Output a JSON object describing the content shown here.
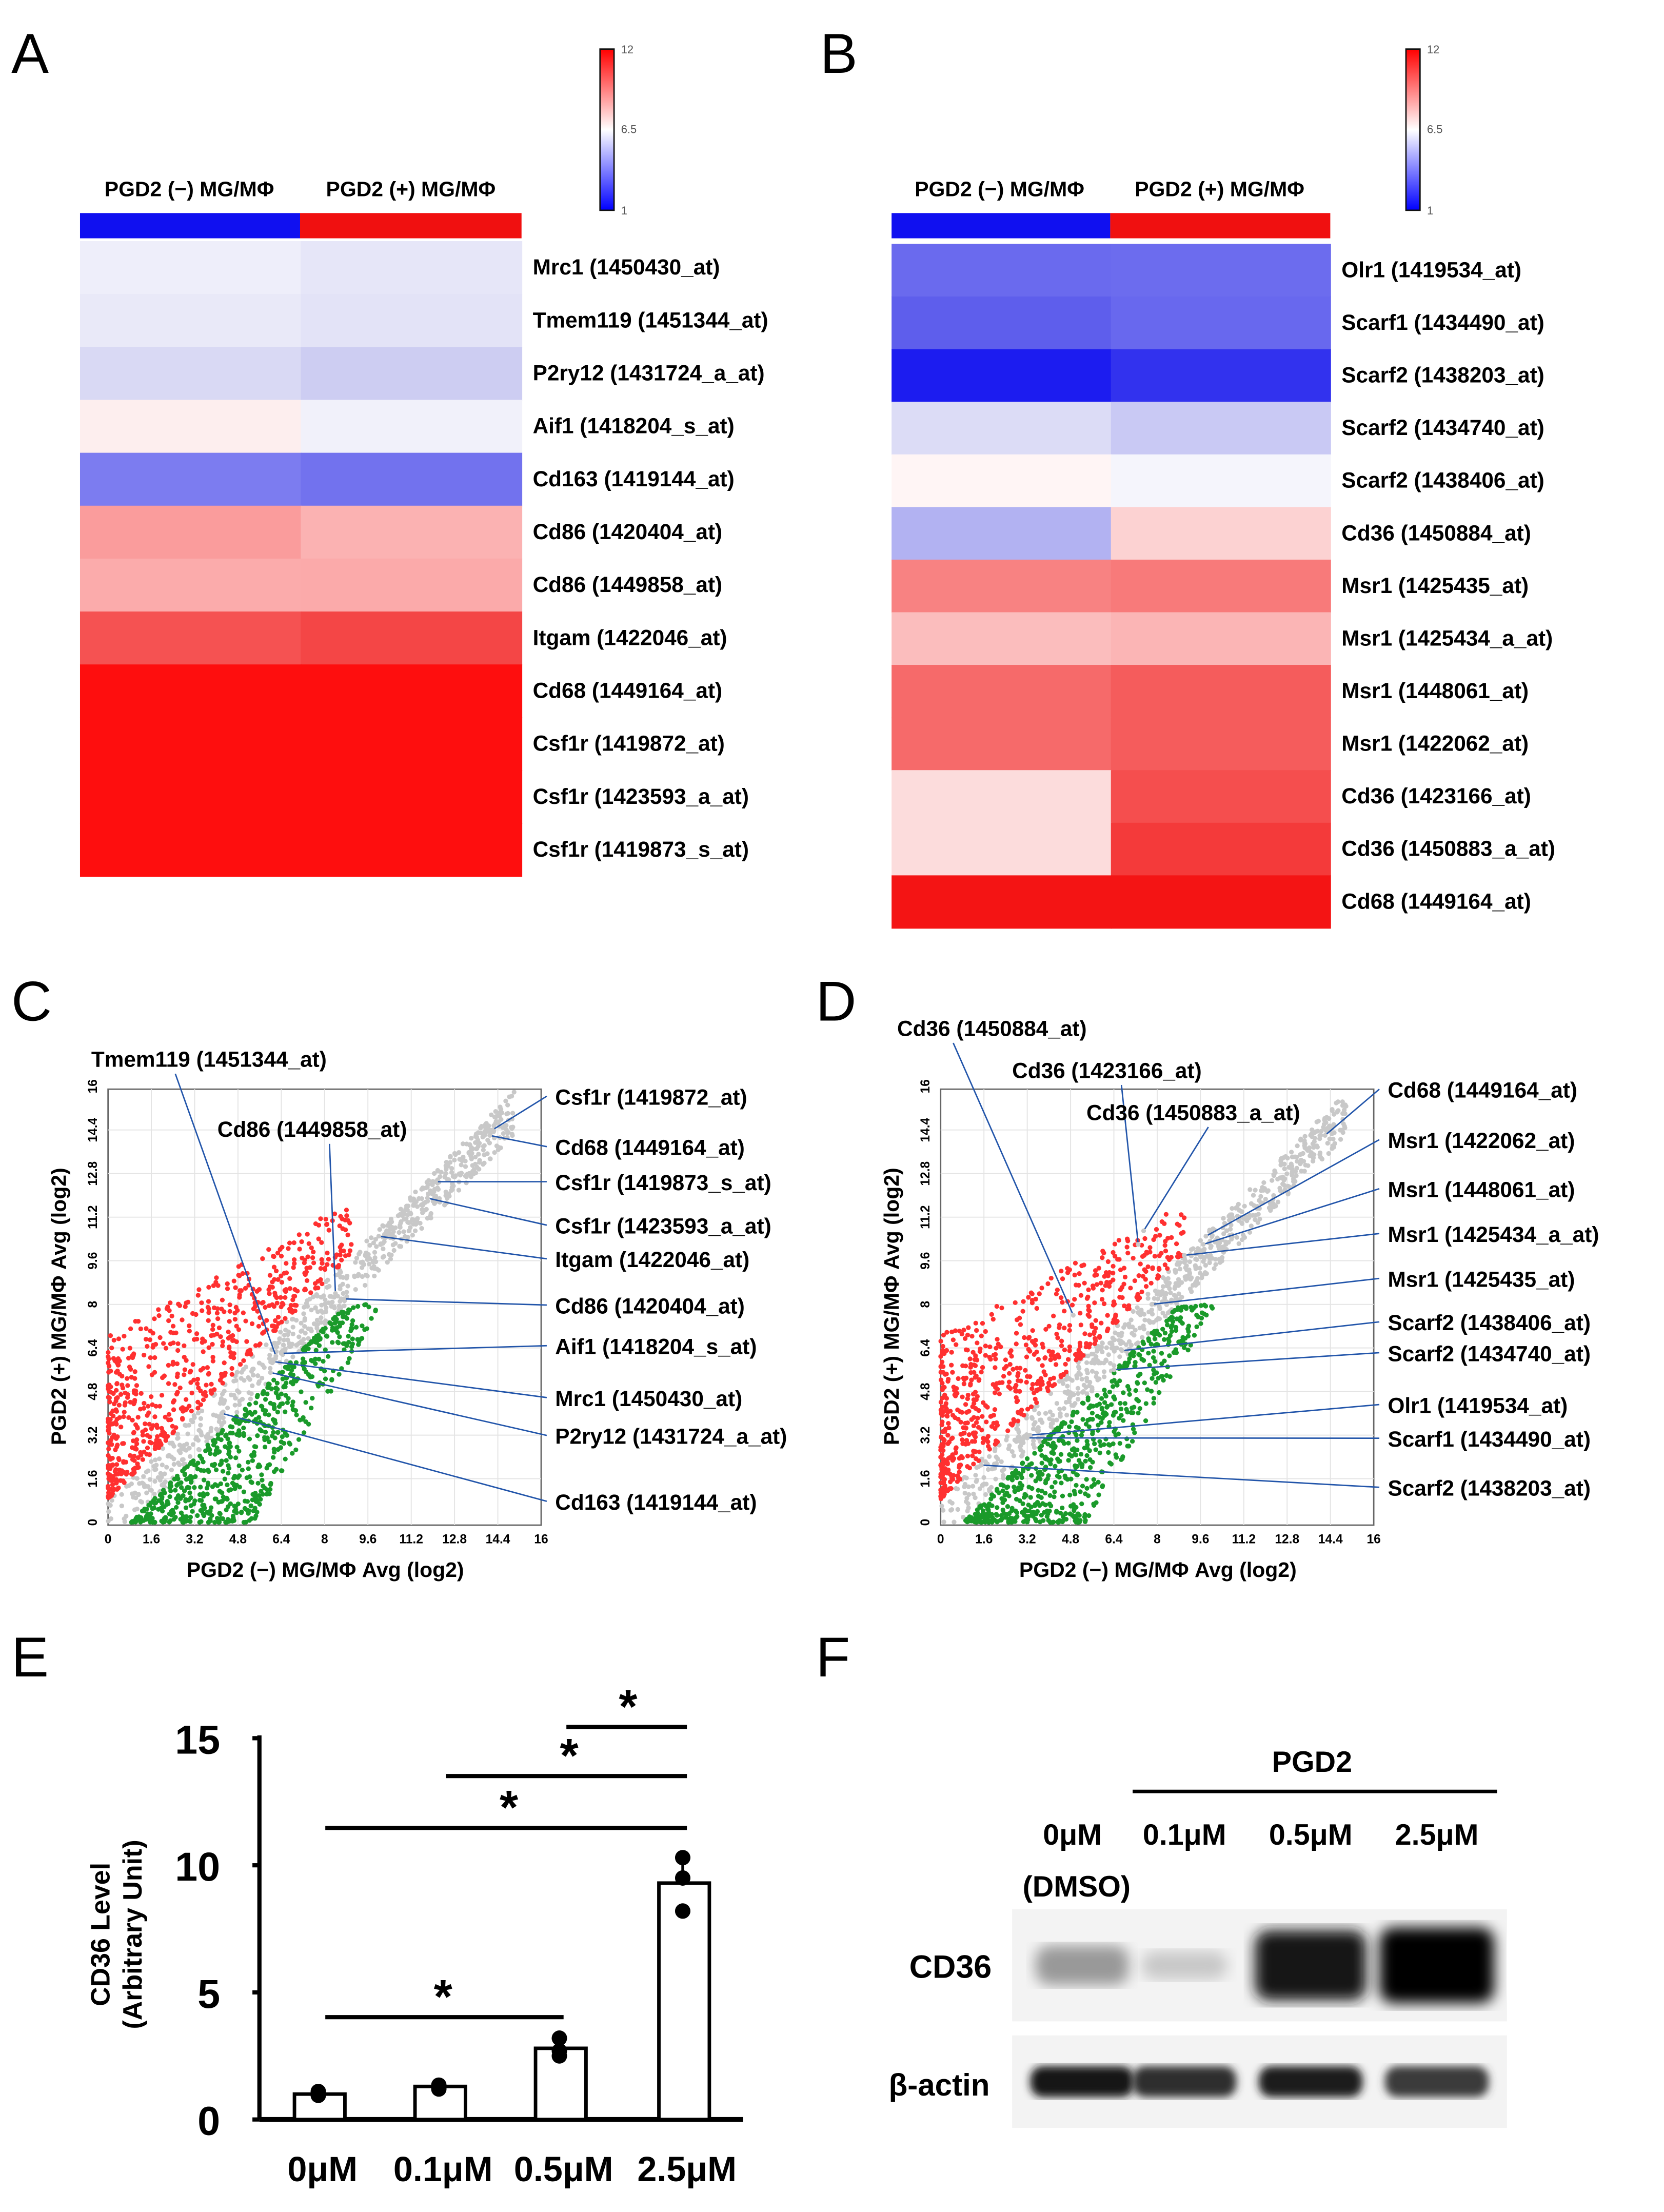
{
  "panels": {
    "a": "A",
    "b": "B",
    "c": "C",
    "d": "D",
    "e": "E",
    "f": "F"
  },
  "colorbar": {
    "max": "12",
    "mid": "6.5",
    "min": "1",
    "colors": [
      "#0000ff",
      "#ffffff",
      "#ff0000"
    ]
  },
  "group_colors": {
    "neg": "#1010f0",
    "pos": "#f01010"
  },
  "chart_data": [
    {
      "type": "heatmap",
      "panel": "A",
      "columns": [
        "PGD2 (−) MG/MΦ",
        "PGD2 (+) MG/MΦ"
      ],
      "rows": [
        {
          "label": "Mrc1 (1450430_at)",
          "colors": [
            "#eeeefa",
            "#e6e6f8"
          ]
        },
        {
          "label": "Tmem119 (1451344_at)",
          "colors": [
            "#e9e9f8",
            "#e3e3f7"
          ]
        },
        {
          "label": "P2ry12 (1431724_a_at)",
          "colors": [
            "#d9d9f4",
            "#cdcdf2"
          ]
        },
        {
          "label": "Aif1 (1418204_s_at)",
          "colors": [
            "#fdeeee",
            "#f1f1fa"
          ]
        },
        {
          "label": "Cd163 (1419144_at)",
          "colors": [
            "#7c7cf0",
            "#7272ee"
          ]
        },
        {
          "label": "Cd86 (1420404_at)",
          "colors": [
            "#fa9c9c",
            "#fbb2b2"
          ]
        },
        {
          "label": "Cd86 (1449858_at)",
          "colors": [
            "#fbabab",
            "#fbaaaa"
          ]
        },
        {
          "label": "Itgam (1422046_at)",
          "colors": [
            "#f55252",
            "#f44646"
          ]
        },
        {
          "label": "Cd68 (1449164_at)",
          "colors": [
            "#fe0e0e",
            "#fe0e0e"
          ]
        },
        {
          "label": "Csf1r (1419872_at)",
          "colors": [
            "#fe0e0e",
            "#fe0e0e"
          ]
        },
        {
          "label": "Csf1r (1423593_a_at)",
          "colors": [
            "#fe0e0e",
            "#fe0e0e"
          ]
        },
        {
          "label": "Csf1r (1419873_s_at)",
          "colors": [
            "#fe0e0e",
            "#fe0e0e"
          ]
        }
      ],
      "scale": {
        "min": 1,
        "mid": 6.5,
        "max": 12
      }
    },
    {
      "type": "heatmap",
      "panel": "B",
      "columns": [
        "PGD2 (−) MG/MΦ",
        "PGD2 (+) MG/MΦ"
      ],
      "rows": [
        {
          "label": "Olr1 (1419534_at)",
          "colors": [
            "#6a6aee",
            "#6c6cee"
          ]
        },
        {
          "label": "Scarf1 (1434490_at)",
          "colors": [
            "#5e5eec",
            "#6868ee"
          ]
        },
        {
          "label": "Scarf2 (1438203_at)",
          "colors": [
            "#1c1cf0",
            "#3232ee"
          ]
        },
        {
          "label": "Scarf2 (1434740_at)",
          "colors": [
            "#dcdcf6",
            "#c9c9f4"
          ]
        },
        {
          "label": "Scarf2 (1438406_at)",
          "colors": [
            "#fff5f5",
            "#f5f5fc"
          ]
        },
        {
          "label": "Cd36 (1450884_at)",
          "colors": [
            "#b2b2f2",
            "#fcd2d2"
          ]
        },
        {
          "label": "Msr1 (1425435_at)",
          "colors": [
            "#f88282",
            "#f87a7a"
          ]
        },
        {
          "label": "Msr1 (1425434_a_at)",
          "colors": [
            "#fbbdbd",
            "#fbb5b5"
          ]
        },
        {
          "label": "Msr1 (1448061_at)",
          "colors": [
            "#f66a6a",
            "#f55c5c"
          ]
        },
        {
          "label": "Msr1 (1422062_at)",
          "colors": [
            "#f66a6a",
            "#f55c5c"
          ]
        },
        {
          "label": "Cd36 (1423166_at)",
          "colors": [
            "#fcdcdc",
            "#f54e4e"
          ]
        },
        {
          "label": "Cd36 (1450883_a_at)",
          "colors": [
            "#fcdcdc",
            "#f43a3a"
          ]
        },
        {
          "label": "Cd68 (1449164_at)",
          "colors": [
            "#f41414",
            "#f41414"
          ]
        }
      ],
      "scale": {
        "min": 1,
        "mid": 6.5,
        "max": 12
      }
    },
    {
      "type": "scatter",
      "panel": "C",
      "xlabel": "PGD2 (−) MG/MΦ Avg (log2)",
      "ylabel": "PGD2 (+) MG/MΦ Avg (log2)",
      "xlim": [
        0,
        16
      ],
      "ylim": [
        0,
        16
      ],
      "ticks": [
        "0",
        "1.6",
        "3.2",
        "4.8",
        "6.4",
        "8",
        "9.6",
        "11.2",
        "12.8",
        "14.4",
        "16"
      ],
      "grid": true,
      "series_colors": {
        "up": "#ff3030",
        "unchanged": "#c8c8c8",
        "down": "#1a9a2a"
      },
      "annotations": [
        {
          "label": "Tmem119 (1451344_at)",
          "x": 6.2,
          "y": 6.1
        },
        {
          "label": "Cd86 (1449858_at)",
          "x": 8.4,
          "y": 8.4
        },
        {
          "label": "Csf1r (1419872_at)",
          "x": 14.2,
          "y": 14.4
        },
        {
          "label": "Cd68 (1449164_at)",
          "x": 14.1,
          "y": 14.2
        },
        {
          "label": "Csf1r (1419873_s_at)",
          "x": 12.1,
          "y": 12.5
        },
        {
          "label": "Csf1r (1423593_a_at)",
          "x": 11.8,
          "y": 11.9
        },
        {
          "label": "Itgam (1422046_at)",
          "x": 10.0,
          "y": 10.5
        },
        {
          "label": "Cd86 (1420404_at)",
          "x": 8.7,
          "y": 8.2
        },
        {
          "label": "Aif1 (1418204_s_at)",
          "x": 6.4,
          "y": 6.2
        },
        {
          "label": "Mrc1 (1450430_at)",
          "x": 6.1,
          "y": 5.9
        },
        {
          "label": "P2ry12 (1431724_a_at)",
          "x": 6.0,
          "y": 5.5
        },
        {
          "label": "Cd163 (1419144_at)",
          "x": 4.2,
          "y": 4.0
        }
      ]
    },
    {
      "type": "scatter",
      "panel": "D",
      "xlabel": "PGD2 (−) MG/MΦ Avg (log2)",
      "ylabel": "PGD2 (+) MG/MΦ Avg (log2)",
      "xlim": [
        0,
        16
      ],
      "ylim": [
        0,
        16
      ],
      "ticks": [
        "0",
        "1.6",
        "3.2",
        "4.8",
        "6.4",
        "8",
        "9.6",
        "11.2",
        "12.8",
        "14.4",
        "16"
      ],
      "grid": true,
      "series_colors": {
        "up": "#ff3030",
        "unchanged": "#c8c8c8",
        "down": "#1a9a2a"
      },
      "annotations": [
        {
          "label": "Cd36 (1450884_at)",
          "x": 4.9,
          "y": 7.6
        },
        {
          "label": "Cd36 (1423166_at)",
          "x": 7.3,
          "y": 10.2
        },
        {
          "label": "Cd36 (1450883_a_at)",
          "x": 7.5,
          "y": 10.7
        },
        {
          "label": "Cd68 (1449164_at)",
          "x": 14.2,
          "y": 14.2
        },
        {
          "label": "Msr1 (1422062_at)",
          "x": 9.8,
          "y": 10.5
        },
        {
          "label": "Msr1 (1448061_at)",
          "x": 9.7,
          "y": 10.2
        },
        {
          "label": "Msr1 (1425434_a_at)",
          "x": 9.0,
          "y": 9.8
        },
        {
          "label": "Msr1 (1425435_at)",
          "x": 7.8,
          "y": 8.0
        },
        {
          "label": "Scarf2 (1438406_at)",
          "x": 6.7,
          "y": 6.3
        },
        {
          "label": "Scarf2 (1434740_at)",
          "x": 6.4,
          "y": 5.6
        },
        {
          "label": "Olr1 (1419534_at)",
          "x": 3.3,
          "y": 3.2
        },
        {
          "label": "Scarf1 (1434490_at)",
          "x": 3.2,
          "y": 3.1
        },
        {
          "label": "Scarf2 (1438203_at)",
          "x": 1.5,
          "y": 2.1
        }
      ]
    },
    {
      "type": "bar",
      "panel": "E",
      "categories": [
        "0μM",
        "0.1μM",
        "0.5μM",
        "2.5μM"
      ],
      "values": [
        1.0,
        1.3,
        2.8,
        9.3
      ],
      "points": [
        [
          1.1,
          1.0,
          0.95
        ],
        [
          1.35,
          1.25,
          1.2
        ],
        [
          3.2,
          2.7,
          2.5
        ],
        [
          10.3,
          9.5,
          8.2
        ]
      ],
      "ylabel": [
        "CD36 Level",
        "(Arbitrary Unit)"
      ],
      "yticks": [
        "0",
        "5",
        "10",
        "15"
      ],
      "ylim": [
        0,
        15
      ],
      "significance": [
        {
          "from": 0,
          "to": 2,
          "label": "*"
        },
        {
          "from": 0,
          "to": 3,
          "label": "*"
        },
        {
          "from": 1,
          "to": 3,
          "label": "*"
        },
        {
          "from": 2,
          "to": 3,
          "label": "*"
        }
      ]
    }
  ],
  "western": {
    "treatment": "PGD2",
    "lanes": [
      "0μM",
      "0.1μM",
      "0.5μM",
      "2.5μM"
    ],
    "vehicle": "(DMSO)",
    "blots": [
      {
        "label": "CD36",
        "intensity": [
          0.35,
          0.15,
          0.9,
          1.0
        ]
      },
      {
        "label": "β-actin",
        "intensity": [
          0.9,
          0.8,
          0.88,
          0.75
        ]
      }
    ]
  }
}
